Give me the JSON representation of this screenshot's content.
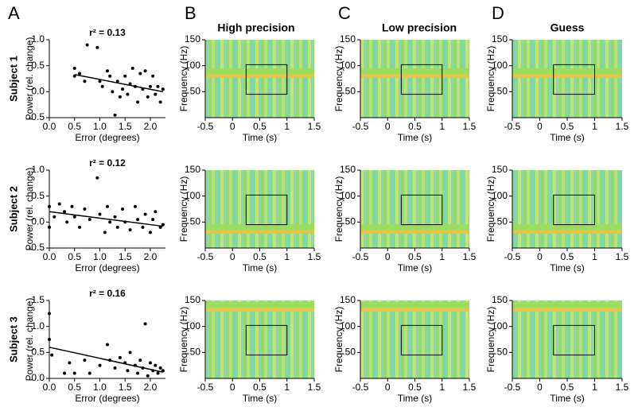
{
  "chart_data": [
    {
      "type": "scatter",
      "panel": "A",
      "row_label": "Subject 1",
      "title": "r² = 0.13",
      "xlabel": "Error (degrees)",
      "ylabel": "Power (rel. change)",
      "color": "#000000",
      "x": [
        0.5,
        0.5,
        0.6,
        0.75,
        0.7,
        0.95,
        1.0,
        1.05,
        1.15,
        1.2,
        1.25,
        1.3,
        1.35,
        1.4,
        1.45,
        1.5,
        1.55,
        1.6,
        1.65,
        1.7,
        1.75,
        1.8,
        1.85,
        1.9,
        1.95,
        2.0,
        2.05,
        2.1,
        2.15,
        2.2,
        2.25
      ],
      "y": [
        0.45,
        0.3,
        0.35,
        0.9,
        0.2,
        0.85,
        0.2,
        0.1,
        0.4,
        0.3,
        0.0,
        -0.45,
        0.2,
        -0.1,
        0.05,
        0.3,
        -0.05,
        0.15,
        0.45,
        0.1,
        -0.2,
        0.35,
        0.05,
        0.4,
        -0.1,
        0.1,
        0.3,
        -0.05,
        0.1,
        -0.2,
        0.05
      ],
      "fit": {
        "x": [
          0.5,
          2.25
        ],
        "y": [
          0.33,
          0.0
        ]
      },
      "xlim": [
        0,
        2.3
      ],
      "ylim": [
        -0.5,
        1.0
      ],
      "xticks": [
        {
          "value": 0,
          "label": "0.0"
        },
        {
          "value": 0.5,
          "label": "0.5"
        },
        {
          "value": 1,
          "label": "1.0"
        },
        {
          "value": 1.5,
          "label": "1.5"
        },
        {
          "value": 2,
          "label": "2.0"
        }
      ],
      "yticks": [
        -0.5,
        {
          "value": 0,
          "label": "0.0"
        },
        0.5,
        {
          "value": 1,
          "label": "1.0"
        }
      ]
    },
    {
      "type": "heatmap",
      "panel": "B",
      "title": "High precision",
      "xlabel": "Time (s)",
      "ylabel": "Frequency (Hz)",
      "xlim": [
        -0.5,
        1.5
      ],
      "ylim": [
        0,
        150
      ],
      "xticks": [
        -0.5,
        0,
        0.5,
        1,
        1.5
      ],
      "yticks": [
        50,
        100,
        150
      ],
      "roi": {
        "x": [
          0.25,
          1
        ],
        "y": [
          45,
          102
        ]
      }
    },
    {
      "type": "heatmap",
      "panel": "C",
      "title": "Low precision",
      "xlabel": "Time (s)",
      "ylabel": "Frequency (Hz)",
      "xlim": [
        -0.5,
        1.5
      ],
      "ylim": [
        0,
        150
      ],
      "xticks": [
        -0.5,
        0,
        0.5,
        1,
        1.5
      ],
      "yticks": [
        50,
        100,
        150
      ],
      "roi": {
        "x": [
          0.25,
          1
        ],
        "y": [
          45,
          102
        ]
      }
    },
    {
      "type": "heatmap",
      "panel": "D",
      "title": "Guess",
      "xlabel": "Time (s)",
      "ylabel": "Frequency (Hz)",
      "xlim": [
        -0.5,
        1.5
      ],
      "ylim": [
        0,
        150
      ],
      "xticks": [
        -0.5,
        0,
        0.5,
        1,
        1.5
      ],
      "yticks": [
        50,
        100,
        150
      ],
      "roi": {
        "x": [
          0.25,
          1
        ],
        "y": [
          45,
          102
        ]
      }
    },
    {
      "type": "scatter",
      "row_label": "Subject 2",
      "title": "r² = 0.12",
      "xlabel": "Error (degrees)",
      "ylabel": "Power (rel. change)",
      "color": "#000000",
      "x": [
        0.0,
        0.0,
        0.1,
        0.2,
        0.3,
        0.35,
        0.45,
        0.5,
        0.6,
        0.7,
        0.8,
        0.95,
        1.0,
        1.1,
        1.15,
        1.2,
        1.3,
        1.35,
        1.45,
        1.5,
        1.6,
        1.7,
        1.75,
        1.85,
        1.9,
        2.0,
        2.05,
        2.1,
        2.2,
        2.25
      ],
      "y": [
        0.3,
        -0.1,
        0.1,
        0.35,
        0.2,
        0.0,
        0.3,
        0.1,
        -0.1,
        0.25,
        0.05,
        0.85,
        0.15,
        -0.2,
        0.3,
        0.0,
        0.1,
        -0.1,
        0.25,
        0.0,
        -0.15,
        0.3,
        0.05,
        -0.1,
        0.15,
        -0.2,
        0.05,
        0.2,
        -0.1,
        -0.05
      ],
      "fit": {
        "x": [
          0,
          2.25
        ],
        "y": [
          0.2,
          -0.08
        ]
      },
      "xlim": [
        0,
        2.3
      ],
      "ylim": [
        -0.5,
        1.0
      ],
      "xticks": [
        {
          "value": 0,
          "label": "0.0"
        },
        {
          "value": 0.5,
          "label": "0.5"
        },
        {
          "value": 1,
          "label": "1.0"
        },
        {
          "value": 1.5,
          "label": "1.5"
        },
        {
          "value": 2,
          "label": "2.0"
        }
      ],
      "yticks": [
        -0.5,
        {
          "value": 0,
          "label": "0.0"
        },
        0.5,
        {
          "value": 1,
          "label": "1.0"
        }
      ]
    },
    {
      "type": "heatmap",
      "xlabel": "Time (s)",
      "ylabel": "Frequency (Hz)",
      "xlim": [
        -0.5,
        1.5
      ],
      "ylim": [
        0,
        150
      ],
      "xticks": [
        -0.5,
        0,
        0.5,
        1,
        1.5
      ],
      "yticks": [
        50,
        100,
        150
      ],
      "roi": {
        "x": [
          0.25,
          1
        ],
        "y": [
          45,
          102
        ]
      }
    },
    {
      "type": "heatmap",
      "xlabel": "Time (s)",
      "ylabel": "Frequency (Hz)",
      "xlim": [
        -0.5,
        1.5
      ],
      "ylim": [
        0,
        150
      ],
      "xticks": [
        -0.5,
        0,
        0.5,
        1,
        1.5
      ],
      "yticks": [
        50,
        100,
        150
      ],
      "roi": {
        "x": [
          0.25,
          1
        ],
        "y": [
          45,
          102
        ]
      }
    },
    {
      "type": "heatmap",
      "xlabel": "Time (s)",
      "ylabel": "Frequency (Hz)",
      "xlim": [
        -0.5,
        1.5
      ],
      "ylim": [
        0,
        150
      ],
      "xticks": [
        -0.5,
        0,
        0.5,
        1,
        1.5
      ],
      "yticks": [
        50,
        100,
        150
      ],
      "roi": {
        "x": [
          0.25,
          1
        ],
        "y": [
          45,
          102
        ]
      }
    },
    {
      "type": "scatter",
      "row_label": "Subject 3",
      "title": "r² = 0.16",
      "xlabel": "Error (degrees)",
      "ylabel": "Power (rel. change)",
      "color": "#000000",
      "x": [
        0.0,
        0.0,
        0.05,
        0.3,
        0.4,
        0.5,
        0.7,
        0.8,
        1.0,
        1.15,
        1.2,
        1.3,
        1.4,
        1.5,
        1.55,
        1.6,
        1.7,
        1.75,
        1.8,
        1.85,
        1.9,
        1.95,
        2.0,
        2.05,
        2.1,
        2.15,
        2.2,
        2.25
      ],
      "y": [
        1.25,
        0.75,
        0.45,
        0.1,
        0.3,
        0.1,
        0.35,
        0.1,
        0.25,
        0.65,
        0.35,
        0.2,
        0.4,
        0.3,
        0.15,
        0.5,
        0.25,
        0.1,
        0.35,
        0.2,
        1.05,
        0.05,
        0.3,
        0.15,
        0.25,
        0.1,
        0.2,
        0.15
      ],
      "fit": {
        "x": [
          0,
          2.25
        ],
        "y": [
          0.6,
          0.12
        ]
      },
      "xlim": [
        0,
        2.3
      ],
      "ylim": [
        0,
        1.5
      ],
      "xticks": [
        {
          "value": 0,
          "label": "0.0"
        },
        {
          "value": 0.5,
          "label": "0.5"
        },
        {
          "value": 1,
          "label": "1.0"
        },
        {
          "value": 1.5,
          "label": "1.5"
        },
        {
          "value": 2,
          "label": "2.0"
        }
      ],
      "yticks": [
        {
          "value": 0,
          "label": "0.0"
        },
        0.5,
        {
          "value": 1,
          "label": "1.0"
        },
        1.5
      ]
    },
    {
      "type": "heatmap",
      "xlabel": "Time (s)",
      "ylabel": "Frequency (Hz)",
      "xlim": [
        -0.5,
        1.5
      ],
      "ylim": [
        0,
        150
      ],
      "xticks": [
        -0.5,
        0,
        0.5,
        1,
        1.5
      ],
      "yticks": [
        50,
        100,
        150
      ],
      "roi": {
        "x": [
          0.25,
          1
        ],
        "y": [
          45,
          102
        ]
      }
    },
    {
      "type": "heatmap",
      "xlabel": "Time (s)",
      "ylabel": "Frequency (Hz)",
      "xlim": [
        -0.5,
        1.5
      ],
      "ylim": [
        0,
        150
      ],
      "xticks": [
        -0.5,
        0,
        0.5,
        1,
        1.5
      ],
      "yticks": [
        50,
        100,
        150
      ],
      "roi": {
        "x": [
          0.25,
          1
        ],
        "y": [
          45,
          102
        ]
      }
    },
    {
      "type": "heatmap",
      "xlabel": "Time (s)",
      "ylabel": "Frequency (Hz)",
      "xlim": [
        -0.5,
        1.5
      ],
      "ylim": [
        0,
        150
      ],
      "xticks": [
        -0.5,
        0,
        0.5,
        1,
        1.5
      ],
      "yticks": [
        50,
        100,
        150
      ],
      "roi": {
        "x": [
          0.25,
          1
        ],
        "y": [
          45,
          102
        ]
      }
    }
  ]
}
